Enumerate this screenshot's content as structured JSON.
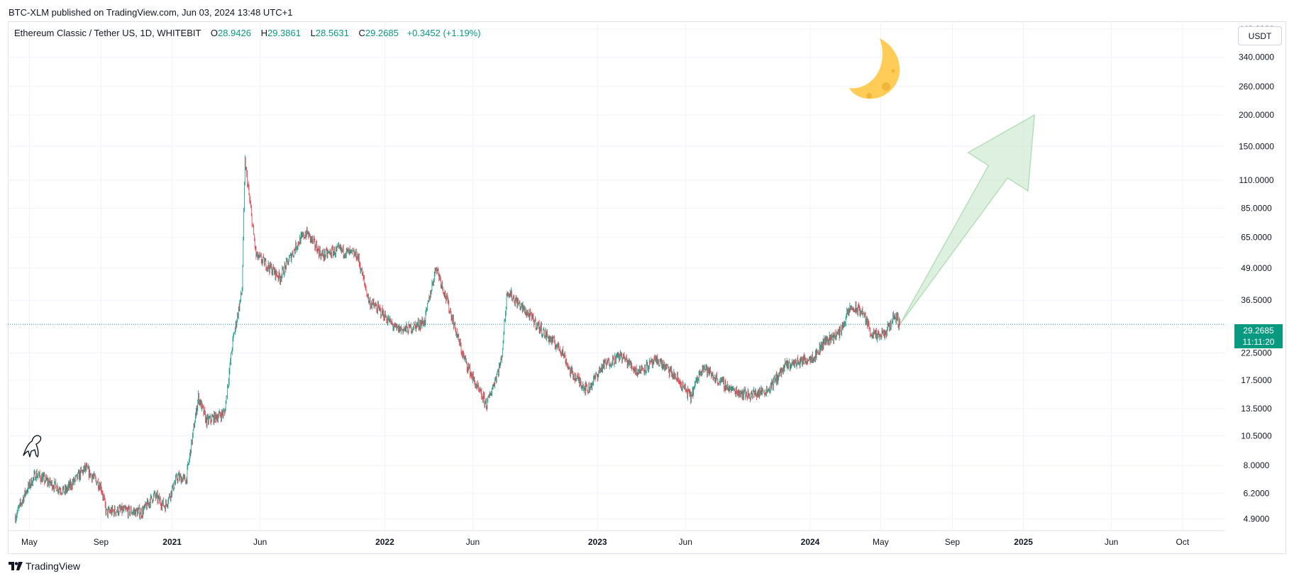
{
  "header": {
    "publish_line": "BTC-XLM published on TradingView.com, Jun 03, 2024 13:48 UTC+1"
  },
  "legend": {
    "symbol": "Ethereum Classic / Tether US, 1D, WHITEBIT",
    "open_label": "O",
    "open": "28.9426",
    "high_label": "H",
    "high": "29.3861",
    "low_label": "L",
    "low": "28.5631",
    "close_label": "C",
    "close": "29.2685",
    "change": "+0.3452 (+1.19%)"
  },
  "currency_button": {
    "label": "USDT"
  },
  "last_price": {
    "price": "29.2685",
    "countdown": "11:11:20",
    "value": 29.2685
  },
  "footer": {
    "brand": "TradingView"
  },
  "colors": {
    "up": "#089981",
    "down": "#f23645",
    "grid": "#f0f3fa",
    "arrow": "#c8e6c9",
    "moon": "#ffcd57"
  },
  "icons": {
    "moon": "crescent-moon-icon",
    "arrow": "up-arrow-drawing",
    "dino": "dinosaur-icon",
    "logo": "tradingview-logo-icon"
  },
  "chart_data": {
    "type": "candlestick",
    "scale": "log",
    "grid": true,
    "ylim": [
      4.4,
      470
    ],
    "xlim": [
      "2020-03-25",
      "2025-12-12"
    ],
    "y_ticks": [
      "440.0000",
      "340.0000",
      "260.0000",
      "200.0000",
      "150.0000",
      "110.0000",
      "85.0000",
      "65.0000",
      "49.0000",
      "36.5000",
      "22.5000",
      "17.5000",
      "13.5000",
      "10.5000",
      "8.0000",
      "6.2000",
      "4.9000"
    ],
    "x_ticks": [
      {
        "label": "May",
        "date": "2020-05-01",
        "bold": false
      },
      {
        "label": "Sep",
        "date": "2020-09-01",
        "bold": false
      },
      {
        "label": "2021",
        "date": "2021-01-01",
        "bold": true
      },
      {
        "label": "Jun",
        "date": "2021-06-01",
        "bold": false
      },
      {
        "label": "2022",
        "date": "2022-01-01",
        "bold": true
      },
      {
        "label": "Jun",
        "date": "2022-06-01",
        "bold": false
      },
      {
        "label": "2023",
        "date": "2023-01-01",
        "bold": true
      },
      {
        "label": "Jun",
        "date": "2023-06-01",
        "bold": false
      },
      {
        "label": "2024",
        "date": "2024-01-01",
        "bold": true
      },
      {
        "label": "May",
        "date": "2024-05-01",
        "bold": false
      },
      {
        "label": "Sep",
        "date": "2024-09-01",
        "bold": false
      },
      {
        "label": "2025",
        "date": "2025-01-01",
        "bold": true
      },
      {
        "label": "Jun",
        "date": "2025-06-01",
        "bold": false
      },
      {
        "label": "Oct",
        "date": "2025-10-01",
        "bold": false
      }
    ],
    "price_path": [
      [
        "2020-04-07",
        5.0
      ],
      [
        "2020-04-25",
        6.3
      ],
      [
        "2020-05-12",
        7.4
      ],
      [
        "2020-06-01",
        6.9
      ],
      [
        "2020-07-01",
        6.3
      ],
      [
        "2020-08-05",
        7.8
      ],
      [
        "2020-09-01",
        6.6
      ],
      [
        "2020-09-10",
        5.2
      ],
      [
        "2020-10-01",
        5.3
      ],
      [
        "2020-11-10",
        5.2
      ],
      [
        "2020-12-01",
        6.1
      ],
      [
        "2020-12-20",
        5.5
      ],
      [
        "2021-01-10",
        7.2
      ],
      [
        "2021-01-25",
        7.0
      ],
      [
        "2021-02-15",
        15.0
      ],
      [
        "2021-03-01",
        12.0
      ],
      [
        "2021-04-01",
        13.0
      ],
      [
        "2021-04-15",
        25.0
      ],
      [
        "2021-05-01",
        40.0
      ],
      [
        "2021-05-06",
        130.0
      ],
      [
        "2021-05-12",
        100.0
      ],
      [
        "2021-05-25",
        55.0
      ],
      [
        "2021-06-15",
        50.0
      ],
      [
        "2021-07-05",
        45.0
      ],
      [
        "2021-08-05",
        62.0
      ],
      [
        "2021-08-20",
        68.0
      ],
      [
        "2021-09-15",
        55.0
      ],
      [
        "2021-10-15",
        58.0
      ],
      [
        "2021-11-15",
        55.0
      ],
      [
        "2021-12-05",
        36.0
      ],
      [
        "2021-12-25",
        33.0
      ],
      [
        "2022-01-20",
        28.0
      ],
      [
        "2022-02-10",
        28.0
      ],
      [
        "2022-03-10",
        30.0
      ],
      [
        "2022-03-30",
        50.0
      ],
      [
        "2022-04-25",
        32.0
      ],
      [
        "2022-05-15",
        22.0
      ],
      [
        "2022-06-10",
        16.0
      ],
      [
        "2022-06-25",
        14.0
      ],
      [
        "2022-07-20",
        21.0
      ],
      [
        "2022-07-30",
        40.0
      ],
      [
        "2022-08-15",
        36.0
      ],
      [
        "2022-09-10",
        31.0
      ],
      [
        "2022-10-01",
        27.0
      ],
      [
        "2022-11-01",
        23.0
      ],
      [
        "2022-11-15",
        19.0
      ],
      [
        "2022-12-15",
        16.0
      ],
      [
        "2023-01-10",
        20.0
      ],
      [
        "2023-02-10",
        22.0
      ],
      [
        "2023-03-10",
        19.0
      ],
      [
        "2023-04-15",
        21.0
      ],
      [
        "2023-05-15",
        18.0
      ],
      [
        "2023-06-10",
        15.0
      ],
      [
        "2023-06-30",
        20.0
      ],
      [
        "2023-07-20",
        18.0
      ],
      [
        "2023-08-20",
        16.0
      ],
      [
        "2023-09-20",
        15.3
      ],
      [
        "2023-10-20",
        16.0
      ],
      [
        "2023-11-20",
        20.0
      ],
      [
        "2023-12-20",
        21.0
      ],
      [
        "2024-01-10",
        22.0
      ],
      [
        "2024-01-25",
        25.0
      ],
      [
        "2024-02-20",
        27.0
      ],
      [
        "2024-03-10",
        34.0
      ],
      [
        "2024-03-30",
        33.0
      ],
      [
        "2024-04-15",
        27.0
      ],
      [
        "2024-04-25",
        26.0
      ],
      [
        "2024-05-10",
        27.0
      ],
      [
        "2024-05-25",
        32.0
      ],
      [
        "2024-06-03",
        29.2685
      ]
    ]
  },
  "annotations": {
    "arrow_points": [
      [
        "2024-06-03",
        29.2685
      ],
      [
        "2025-01-20",
        200.0
      ]
    ]
  }
}
